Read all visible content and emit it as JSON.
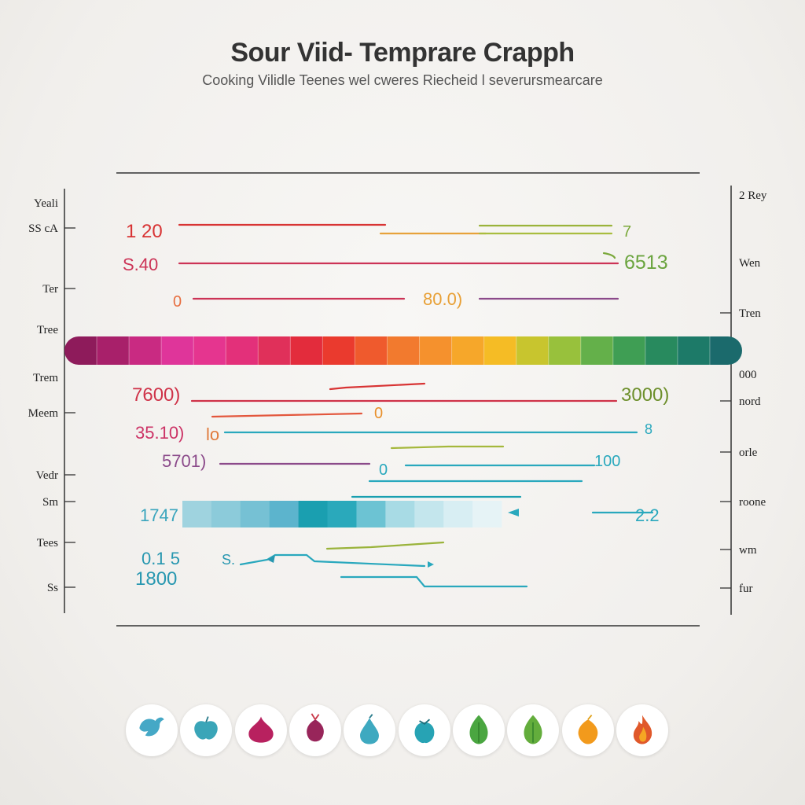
{
  "title": "Sour Viid- Temprare Crapph",
  "subtitle": "Cooking Vilidle Teenes wel cweres Riecheid l severursmearcare",
  "chart_data": {
    "type": "line",
    "left_labels": [
      "Yeali",
      "SS cA",
      "Ter",
      "Tree",
      "Trem",
      "Meem",
      "Vedr",
      "Sm",
      "Tees",
      "Ss"
    ],
    "right_labels": [
      "2 Rey",
      "Wen",
      "Tren",
      "000",
      "nord",
      "orle",
      "roone",
      "wm",
      "fur"
    ],
    "value_labels": [
      {
        "text": "1 20",
        "color": "#d83434"
      },
      {
        "text": "7",
        "color": "#7aa83a"
      },
      {
        "text": "6513",
        "color": "#6aa43e"
      },
      {
        "text": "S.40",
        "color": "#cc3356"
      },
      {
        "text": "0",
        "color": "#e76e40"
      },
      {
        "text": "80.0)",
        "color": "#e8a036"
      },
      {
        "text": "7600)",
        "color": "#cf3349"
      },
      {
        "text": "3000)",
        "color": "#6d8f2b"
      },
      {
        "text": "0",
        "color": "#e8902c"
      },
      {
        "text": "35.10)",
        "color": "#cc3366"
      },
      {
        "text": "lo",
        "color": "#e07a3c"
      },
      {
        "text": "8",
        "color": "#29a8bd"
      },
      {
        "text": "5701)",
        "color": "#8b4a8a"
      },
      {
        "text": "0",
        "color": "#29a8bd"
      },
      {
        "text": "100",
        "color": "#29a8bd"
      },
      {
        "text": "1747",
        "color": "#3aa5bd"
      },
      {
        "text": "2.2",
        "color": "#29a8bd"
      },
      {
        "text": "0.1 5",
        "color": "#2797b0"
      },
      {
        "text": "S.",
        "color": "#2797b0"
      },
      {
        "text": "1800",
        "color": "#2797b0"
      }
    ],
    "series_colors": [
      "#d83434",
      "#9ab33b",
      "#cc3356",
      "#8b4a8a",
      "#cf3349",
      "#29a8bd"
    ],
    "spectrum_colors": [
      "#8e1b5b",
      "#a8206a",
      "#c92a82",
      "#df359a",
      "#e5358f",
      "#e3307a",
      "#e0305a",
      "#e32c3c",
      "#ea3a2e",
      "#ef5a2d",
      "#f27a2e",
      "#f5912d",
      "#f6a72a",
      "#f5bc25",
      "#c8c52e",
      "#98c13c",
      "#64b04a",
      "#3f9e54",
      "#288a5e",
      "#1d7a68",
      "#1b6a6c"
    ],
    "teal_gradient": [
      "#9fd3df",
      "#8ccbda",
      "#76c1d4",
      "#5cb4cd",
      "#1a9fb0",
      "#2aa9bb",
      "#6cc3d3",
      "#a8dbe5",
      "#c4e6ed",
      "#d8eef3",
      "#e6f3f6"
    ],
    "grid": false
  },
  "icons": [
    {
      "name": "bird-icon",
      "color": "#45a8c6"
    },
    {
      "name": "apple-icon",
      "color": "#3aa5b8"
    },
    {
      "name": "onion-icon",
      "color": "#b8215f"
    },
    {
      "name": "beet-icon",
      "color": "#98255a"
    },
    {
      "name": "drop-icon",
      "color": "#3ea9c0"
    },
    {
      "name": "fruit-icon",
      "color": "#27a3b4"
    },
    {
      "name": "leaf-icon",
      "color": "#4aa640"
    },
    {
      "name": "leaf-icon",
      "color": "#63ad3c"
    },
    {
      "name": "citrus-icon",
      "color": "#f29a1c"
    },
    {
      "name": "flame-icon",
      "color": "#e0582a"
    }
  ]
}
